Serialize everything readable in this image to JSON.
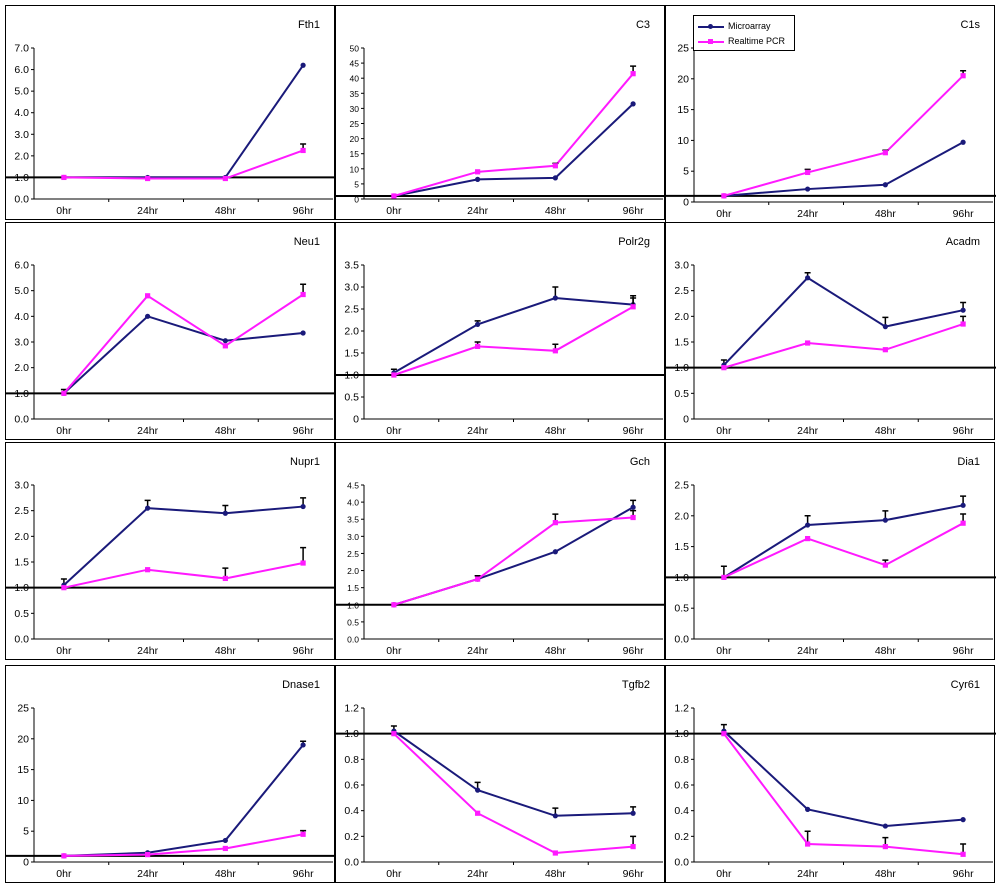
{
  "colors": {
    "microarray": "#1a1a7a",
    "realtime_pcr": "#ff1aff",
    "baseline": "#000000"
  },
  "legend": {
    "placement": "top-left inside C1s panel",
    "items": [
      "Microarray",
      "Realtime PCR"
    ]
  },
  "chart_data": [
    {
      "type": "line",
      "title": "Fth1",
      "categories": [
        "0hr",
        "24hr",
        "48hr",
        "96hr"
      ],
      "ylim": [
        0,
        7
      ],
      "yticks": [
        "0.0",
        "1.0",
        "2.0",
        "3.0",
        "4.0",
        "5.0",
        "6.0",
        "7.0"
      ],
      "baseline": 1,
      "series": [
        {
          "name": "Microarray",
          "values": [
            1.0,
            1.0,
            1.0,
            6.2
          ],
          "err": [
            0,
            0,
            0,
            0
          ]
        },
        {
          "name": "Realtime PCR",
          "values": [
            1.0,
            0.95,
            0.95,
            2.25
          ],
          "err": [
            0,
            0,
            0,
            0.3
          ]
        }
      ]
    },
    {
      "type": "line",
      "title": "C3",
      "categories": [
        "0hr",
        "24hr",
        "48hr",
        "96hr"
      ],
      "ylim": [
        0,
        50
      ],
      "yticks": [
        "0",
        "5",
        "10",
        "15",
        "20",
        "25",
        "30",
        "35",
        "40",
        "45",
        "50"
      ],
      "baseline": 1,
      "series": [
        {
          "name": "Microarray",
          "values": [
            1.0,
            6.5,
            7.0,
            31.5
          ],
          "err": [
            0,
            0,
            0,
            0
          ]
        },
        {
          "name": "Realtime PCR",
          "values": [
            1.0,
            9.0,
            11.0,
            41.5
          ],
          "err": [
            0,
            0,
            0.8,
            2.5
          ]
        }
      ]
    },
    {
      "type": "line",
      "title": "C1s",
      "categories": [
        "0hr",
        "24hr",
        "48hr",
        "96hr"
      ],
      "ylim": [
        0,
        25
      ],
      "yticks": [
        "0",
        "5",
        "10",
        "15",
        "20",
        "25"
      ],
      "baseline": 1,
      "series": [
        {
          "name": "Microarray",
          "values": [
            1.0,
            2.1,
            2.8,
            9.7
          ],
          "err": [
            0,
            0,
            0,
            0
          ]
        },
        {
          "name": "Realtime PCR",
          "values": [
            1.0,
            4.8,
            8.0,
            20.5
          ],
          "err": [
            0,
            0.5,
            0.4,
            0.8
          ]
        }
      ]
    },
    {
      "type": "line",
      "title": "Neu1",
      "categories": [
        "0hr",
        "24hr",
        "48hr",
        "96hr"
      ],
      "ylim": [
        0,
        6
      ],
      "yticks": [
        "0.0",
        "1.0",
        "2.0",
        "3.0",
        "4.0",
        "5.0",
        "6.0"
      ],
      "baseline": 1,
      "series": [
        {
          "name": "Microarray",
          "values": [
            1.0,
            4.0,
            3.05,
            3.35
          ],
          "err": [
            0.15,
            0,
            0,
            0
          ]
        },
        {
          "name": "Realtime PCR",
          "values": [
            1.0,
            4.8,
            2.85,
            4.85
          ],
          "err": [
            0,
            0,
            0,
            0.4
          ]
        }
      ]
    },
    {
      "type": "line",
      "title": "Polr2g",
      "categories": [
        "0hr",
        "24hr",
        "48hr",
        "96hr"
      ],
      "ylim": [
        0,
        3.5
      ],
      "yticks": [
        "0",
        "0.5",
        "1.0",
        "1.5",
        "2.0",
        "2.5",
        "3.0",
        "3.5"
      ],
      "baseline": 1,
      "series": [
        {
          "name": "Microarray",
          "values": [
            1.05,
            2.15,
            2.75,
            2.6
          ],
          "err": [
            0.08,
            0.08,
            0.25,
            0.2
          ]
        },
        {
          "name": "Realtime PCR",
          "values": [
            1.0,
            1.65,
            1.55,
            2.55
          ],
          "err": [
            0,
            0.1,
            0.15,
            0.2
          ]
        }
      ]
    },
    {
      "type": "line",
      "title": "Acadm",
      "categories": [
        "0hr",
        "24hr",
        "48hr",
        "96hr"
      ],
      "ylim": [
        0,
        3.0
      ],
      "yticks": [
        "0",
        "0.5",
        "1.0",
        "1.5",
        "2.0",
        "2.5",
        "3.0"
      ],
      "baseline": 1,
      "series": [
        {
          "name": "Microarray",
          "values": [
            1.05,
            2.75,
            1.8,
            2.12
          ],
          "err": [
            0.1,
            0.1,
            0.18,
            0.15
          ]
        },
        {
          "name": "Realtime PCR",
          "values": [
            1.0,
            1.48,
            1.35,
            1.85
          ],
          "err": [
            0,
            0,
            0,
            0.15
          ]
        }
      ]
    },
    {
      "type": "line",
      "title": "Nupr1",
      "categories": [
        "0hr",
        "24hr",
        "48hr",
        "96hr"
      ],
      "ylim": [
        0,
        3.0
      ],
      "yticks": [
        "0.0",
        "0.5",
        "1.0",
        "1.5",
        "2.0",
        "2.5",
        "3.0"
      ],
      "baseline": 1,
      "series": [
        {
          "name": "Microarray",
          "values": [
            1.05,
            2.55,
            2.45,
            2.58
          ],
          "err": [
            0.12,
            0.15,
            0.15,
            0.17
          ]
        },
        {
          "name": "Realtime PCR",
          "values": [
            1.0,
            1.35,
            1.18,
            1.48
          ],
          "err": [
            0,
            0,
            0.2,
            0.3
          ]
        }
      ]
    },
    {
      "type": "line",
      "title": "Gch",
      "categories": [
        "0hr",
        "24hr",
        "48hr",
        "96hr"
      ],
      "ylim": [
        0,
        4.5
      ],
      "yticks": [
        "0.0",
        "0.5",
        "1.0",
        "1.5",
        "2.0",
        "2.5",
        "3.0",
        "3.5",
        "4.0",
        "4.5"
      ],
      "baseline": 1,
      "series": [
        {
          "name": "Microarray",
          "values": [
            1.0,
            1.75,
            2.55,
            3.85
          ],
          "err": [
            0,
            0.1,
            0,
            0.2
          ]
        },
        {
          "name": "Realtime PCR",
          "values": [
            1.0,
            1.75,
            3.4,
            3.55
          ],
          "err": [
            0,
            0,
            0.25,
            0.2
          ]
        }
      ]
    },
    {
      "type": "line",
      "title": "Dia1",
      "categories": [
        "0hr",
        "24hr",
        "48hr",
        "96hr"
      ],
      "ylim": [
        0,
        2.5
      ],
      "yticks": [
        "0.0",
        "0.5",
        "1.0",
        "1.5",
        "2.0",
        "2.5"
      ],
      "baseline": 1,
      "series": [
        {
          "name": "Microarray",
          "values": [
            1.0,
            1.85,
            1.93,
            2.17
          ],
          "err": [
            0.18,
            0.15,
            0.15,
            0.15
          ]
        },
        {
          "name": "Realtime PCR",
          "values": [
            1.0,
            1.63,
            1.2,
            1.88
          ],
          "err": [
            0,
            0,
            0.08,
            0.15
          ]
        }
      ]
    },
    {
      "type": "line",
      "title": "Dnase1",
      "categories": [
        "0hr",
        "24hr",
        "48hr",
        "96hr"
      ],
      "ylim": [
        0,
        25
      ],
      "yticks": [
        "0",
        "5",
        "10",
        "15",
        "20",
        "25"
      ],
      "baseline": 1,
      "series": [
        {
          "name": "Microarray",
          "values": [
            1.0,
            1.5,
            3.5,
            19.0
          ],
          "err": [
            0,
            0,
            0,
            0.6
          ]
        },
        {
          "name": "Realtime PCR",
          "values": [
            1.0,
            1.2,
            2.2,
            4.5
          ],
          "err": [
            0,
            0,
            0,
            0.6
          ]
        }
      ]
    },
    {
      "type": "line",
      "title": "Tgfb2",
      "categories": [
        "0hr",
        "24hr",
        "48hr",
        "96hr"
      ],
      "ylim": [
        0,
        1.2
      ],
      "yticks": [
        "0.0",
        "0.2",
        "0.4",
        "0.6",
        "0.8",
        "1.0",
        "1.2"
      ],
      "baseline": 1,
      "series": [
        {
          "name": "Microarray",
          "values": [
            1.02,
            0.56,
            0.36,
            0.38
          ],
          "err": [
            0.04,
            0.06,
            0.06,
            0.05
          ]
        },
        {
          "name": "Realtime PCR",
          "values": [
            1.0,
            0.38,
            0.07,
            0.12
          ],
          "err": [
            0,
            0,
            0,
            0.08
          ]
        }
      ]
    },
    {
      "type": "line",
      "title": "Cyr61",
      "categories": [
        "0hr",
        "24hr",
        "48hr",
        "96hr"
      ],
      "ylim": [
        0,
        1.2
      ],
      "yticks": [
        "0.0",
        "0.2",
        "0.4",
        "0.6",
        "0.8",
        "1.0",
        "1.2"
      ],
      "baseline": 1,
      "series": [
        {
          "name": "Microarray",
          "values": [
            1.02,
            0.41,
            0.28,
            0.33
          ],
          "err": [
            0.05,
            0,
            0,
            0
          ]
        },
        {
          "name": "Realtime PCR",
          "values": [
            1.0,
            0.14,
            0.12,
            0.06
          ],
          "err": [
            0,
            0.1,
            0.07,
            0.08
          ]
        }
      ]
    }
  ]
}
